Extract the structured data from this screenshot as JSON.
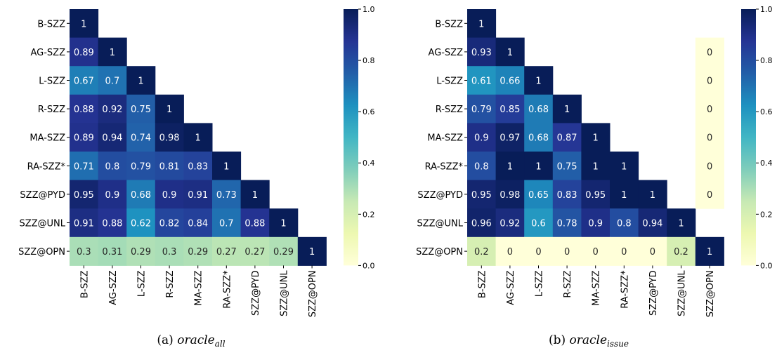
{
  "chart_data": [
    {
      "type": "heatmap",
      "caption": {
        "prefix": "(a) ",
        "main": "oracle",
        "sub": "all"
      },
      "labels": [
        "B-SZZ",
        "AG-SZZ",
        "L-SZZ",
        "R-SZZ",
        "MA-SZZ",
        "RA-SZZ*",
        "SZZ@PYD",
        "SZZ@UNL",
        "SZZ@OPN"
      ],
      "matrix": [
        [
          1
        ],
        [
          0.89,
          1
        ],
        [
          0.67,
          0.7,
          1
        ],
        [
          0.88,
          0.92,
          0.75,
          1
        ],
        [
          0.89,
          0.94,
          0.74,
          0.98,
          1
        ],
        [
          0.71,
          0.8,
          0.79,
          0.81,
          0.83,
          1
        ],
        [
          0.95,
          0.9,
          0.68,
          0.9,
          0.91,
          0.73,
          1
        ],
        [
          0.91,
          0.88,
          0.62,
          0.82,
          0.84,
          0.7,
          0.88,
          1
        ],
        [
          0.3,
          0.31,
          0.29,
          0.3,
          0.29,
          0.27,
          0.27,
          0.29,
          1
        ]
      ],
      "extra_column": [],
      "colorbar": {
        "range": [
          0.0,
          1.0
        ],
        "ticks": [
          "0.0",
          "0.2",
          "0.4",
          "0.6",
          "0.8",
          "1.0"
        ]
      },
      "colormap": "YlGnBu"
    },
    {
      "type": "heatmap",
      "caption": {
        "prefix": "(b) ",
        "main": "oracle",
        "sub": "issue"
      },
      "labels": [
        "B-SZZ",
        "AG-SZZ",
        "L-SZZ",
        "R-SZZ",
        "MA-SZZ",
        "RA-SZZ*",
        "SZZ@PYD",
        "SZZ@UNL",
        "SZZ@OPN"
      ],
      "matrix": [
        [
          1
        ],
        [
          0.93,
          1
        ],
        [
          0.61,
          0.66,
          1
        ],
        [
          0.79,
          0.85,
          0.68,
          1
        ],
        [
          0.9,
          0.97,
          0.68,
          0.87,
          1
        ],
        [
          0.8,
          1,
          1,
          0.75,
          1,
          1
        ],
        [
          0.95,
          0.98,
          0.65,
          0.83,
          0.95,
          1,
          1
        ],
        [
          0.96,
          0.92,
          0.6,
          0.78,
          0.9,
          0.8,
          0.94,
          1
        ],
        [
          0.2,
          0,
          0,
          0,
          0,
          0,
          0,
          0.2,
          1
        ]
      ],
      "extra_column": [
        null,
        0,
        0,
        0,
        0,
        0,
        0,
        null,
        null
      ],
      "colorbar": {
        "range": [
          0.0,
          1.0
        ],
        "ticks": [
          "0.0",
          "0.2",
          "0.4",
          "0.6",
          "0.8",
          "1.0"
        ]
      },
      "colormap": "YlGnBu"
    }
  ]
}
